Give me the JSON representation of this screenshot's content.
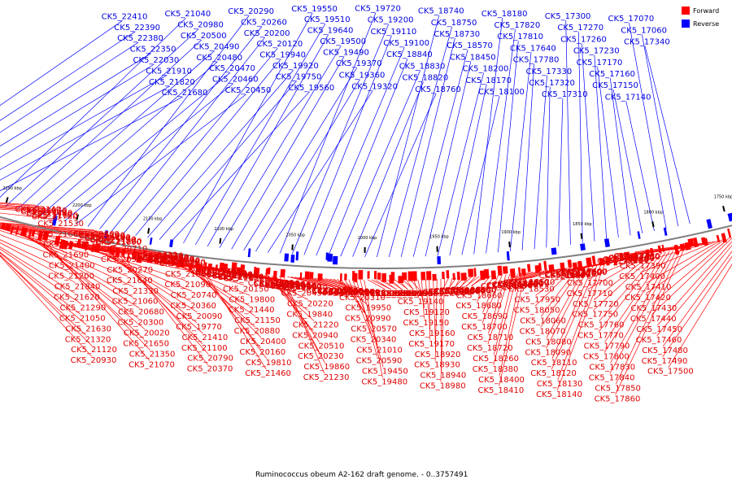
{
  "title": "Ruminococcus obeum A2-162 draft genome. - 0..3757491",
  "legend": [
    {
      "label": "Forward",
      "color": "#ff0000"
    },
    {
      "label": "Reverse",
      "color": "#0000ff"
    }
  ],
  "colors": {
    "forward": "#ff0000",
    "reverse": "#0000ff",
    "forward_label": "#e00000",
    "reverse_label": "#0000e0",
    "backbone": "#808080"
  },
  "scale": {
    "unit": "kbp",
    "ticks": [
      "2300 kbp",
      "2250 kbp",
      "2200 kbp",
      "2150 kbp",
      "2100 kbp",
      "2050 kbp",
      "2000 kbp",
      "1950 kbp",
      "1900 kbp",
      "1850 kbp",
      "1800 kbp",
      "1750 kbp"
    ]
  },
  "reverse_labels": [
    "CK5_22410",
    "CK5_22390",
    "CK5_22380",
    "CK5_22350",
    "CK5_22030",
    "CK5_21910",
    "CK5_21820",
    "CK5_21680",
    "CK5_21040",
    "CK5_20980",
    "CK5_20500",
    "CK5_20490",
    "CK5_20480",
    "CK5_20470",
    "CK5_20460",
    "CK5_20450",
    "CK5_20290",
    "CK5_20260",
    "CK5_20200",
    "CK5_20120",
    "CK5_19940",
    "CK5_19920",
    "CK5_19750",
    "CK5_19560",
    "CK5_19550",
    "CK5_19510",
    "CK5_19640",
    "CK5_19500",
    "CK5_19490",
    "CK5_19370",
    "CK5_19360",
    "CK5_19320",
    "CK5_19720",
    "CK5_19200",
    "CK5_19110",
    "CK5_19100",
    "CK5_18840",
    "CK5_18830",
    "CK5_18820",
    "CK5_18760",
    "CK5_18740",
    "CK5_18750",
    "CK5_18730",
    "CK5_18570",
    "CK5_18450",
    "CK5_18200",
    "CK5_18170",
    "CK5_18100",
    "CK5_18180",
    "CK5_17820",
    "CK5_17810",
    "CK5_17640",
    "CK5_17780",
    "CK5_17330",
    "CK5_17320",
    "CK5_17310",
    "CK5_17300",
    "CK5_17270",
    "CK5_17260",
    "CK5_17230",
    "CK5_17170",
    "CK5_17160",
    "CK5_17150",
    "CK5_17140",
    "CK5_17070",
    "CK5_17060",
    "CK5_17340"
  ],
  "forward_labels": [
    "CK5_22140",
    "CK5_22070",
    "CK5_21900",
    "CK5_21780",
    "CK5_21940",
    "CK5_21670",
    "CK5_21760",
    "CK5_21530",
    "CK5_21660",
    "CK5_21340",
    "CK5_21690",
    "CK5_21400",
    "CK5_21200",
    "CK5_21840",
    "CK5_21620",
    "CK5_21290",
    "CK5_21050",
    "CK5_21630",
    "CK5_21320",
    "CK5_21120",
    "CK5_20930",
    "CK5_20860",
    "CK5_21700",
    "CK5_21360",
    "CK5_21180",
    "CK5_20440",
    "CK5_21710",
    "CK5_21450",
    "CK5_21260",
    "CK5_21000",
    "CK5_20710",
    "CK5_20560",
    "CK5_20270",
    "CK5_21640",
    "CK5_21330",
    "CK5_21060",
    "CK5_20680",
    "CK5_20300",
    "CK5_20020",
    "CK5_21650",
    "CK5_21350",
    "CK5_21070",
    "CK5_20720",
    "CK5_20330",
    "CK5_20070",
    "CK5_20060",
    "CK5_19730",
    "CK5_21570",
    "CK5_21080",
    "CK5_20730",
    "CK5_20350",
    "CK5_20080",
    "CK5_19740",
    "CK5_21380",
    "CK5_21090",
    "CK5_20740",
    "CK5_20360",
    "CK5_20090",
    "CK5_19770",
    "CK5_21410",
    "CK5_21100",
    "CK5_20790",
    "CK5_20370",
    "CK5_20110",
    "CK5_19780",
    "CK5_21420",
    "CK5_21130",
    "CK5_20840",
    "CK5_20380",
    "CK5_20140",
    "CK5_19790",
    "CK5_21430",
    "CK5_21140",
    "CK5_20850",
    "CK5_20390",
    "CK5_20150",
    "CK5_19800",
    "CK5_21440",
    "CK5_21150",
    "CK5_20880",
    "CK5_20400",
    "CK5_20160",
    "CK5_19810",
    "CK5_21460",
    "CK5_21160",
    "CK5_20890",
    "CK5_20410",
    "CK5_20190",
    "CK5_19820",
    "CK5_21190",
    "CK5_20900",
    "CK5_20420",
    "CK5_20210",
    "CK5_19830",
    "CK5_21210",
    "CK5_20910",
    "CK5_20430",
    "CK5_20220",
    "CK5_19840",
    "CK5_21220",
    "CK5_20940",
    "CK5_20510",
    "CK5_20230",
    "CK5_19860",
    "CK5_21230",
    "CK5_20950",
    "CK5_20550",
    "CK5_20240",
    "CK5_19880",
    "CK5_21250",
    "CK5_20960",
    "CK5_20530",
    "CK5_20280",
    "CK5_19930",
    "CK5_21270",
    "CK5_20970",
    "CK5_20580",
    "CK5_20310",
    "CK5_19950",
    "CK5_20990",
    "CK5_20570",
    "CK5_20340",
    "CK5_21010",
    "CK5_20590",
    "CK5_19450",
    "CK5_19480",
    "CK5_19530",
    "CK5_19540",
    "CK5_19580",
    "CK5_19590",
    "CK5_19260",
    "CK5_19270",
    "CK5_19280",
    "CK5_19290",
    "CK5_19300",
    "CK5_19310",
    "CK5_19330",
    "CK5_19340",
    "CK5_19140",
    "CK5_19120",
    "CK5_19150",
    "CK5_19160",
    "CK5_19170",
    "CK5_18920",
    "CK5_18930",
    "CK5_18940",
    "CK5_18980",
    "CK5_18990",
    "CK5_19000",
    "CK5_19010",
    "CK5_19020",
    "CK5_18780",
    "CK5_18790",
    "CK5_18800",
    "CK5_18810",
    "CK5_18850",
    "CK5_18640",
    "CK5_18650",
    "CK5_18660",
    "CK5_18680",
    "CK5_18690",
    "CK5_18700",
    "CK5_18710",
    "CK5_18720",
    "CK5_18260",
    "CK5_18380",
    "CK5_18400",
    "CK5_18410",
    "CK5_18420",
    "CK5_18430",
    "CK5_18440",
    "CK5_18460",
    "CK5_18470",
    "CK5_18480",
    "CK5_18490",
    "CK5_18500",
    "CK5_18510",
    "CK5_18520",
    "CK5_18530",
    "CK5_17950",
    "CK5_18050",
    "CK5_18060",
    "CK5_18070",
    "CK5_18080",
    "CK5_18090",
    "CK5_18110",
    "CK5_18120",
    "CK5_18130",
    "CK5_18140",
    "CK5_18160",
    "CK5_18190",
    "CK5_18210",
    "CK5_18220",
    "CK5_18230",
    "CK5_18240",
    "CK5_17590",
    "CK5_17600",
    "CK5_17690",
    "CK5_17700",
    "CK5_17710",
    "CK5_17720",
    "CK5_17750",
    "CK5_17760",
    "CK5_17770",
    "CK5_17790",
    "CK5_17800",
    "CK5_17830",
    "CK5_17840",
    "CK5_17850",
    "CK5_17860",
    "CK5_17880",
    "CK5_17250",
    "CK5_17280",
    "CK5_17290",
    "CK5_17360",
    "CK5_17370",
    "CK5_17380",
    "CK5_17390",
    "CK5_17400",
    "CK5_17410",
    "CK5_17420",
    "CK5_17430",
    "CK5_17440",
    "CK5_17450",
    "CK5_17460",
    "CK5_17480",
    "CK5_17490",
    "CK5_17500"
  ]
}
